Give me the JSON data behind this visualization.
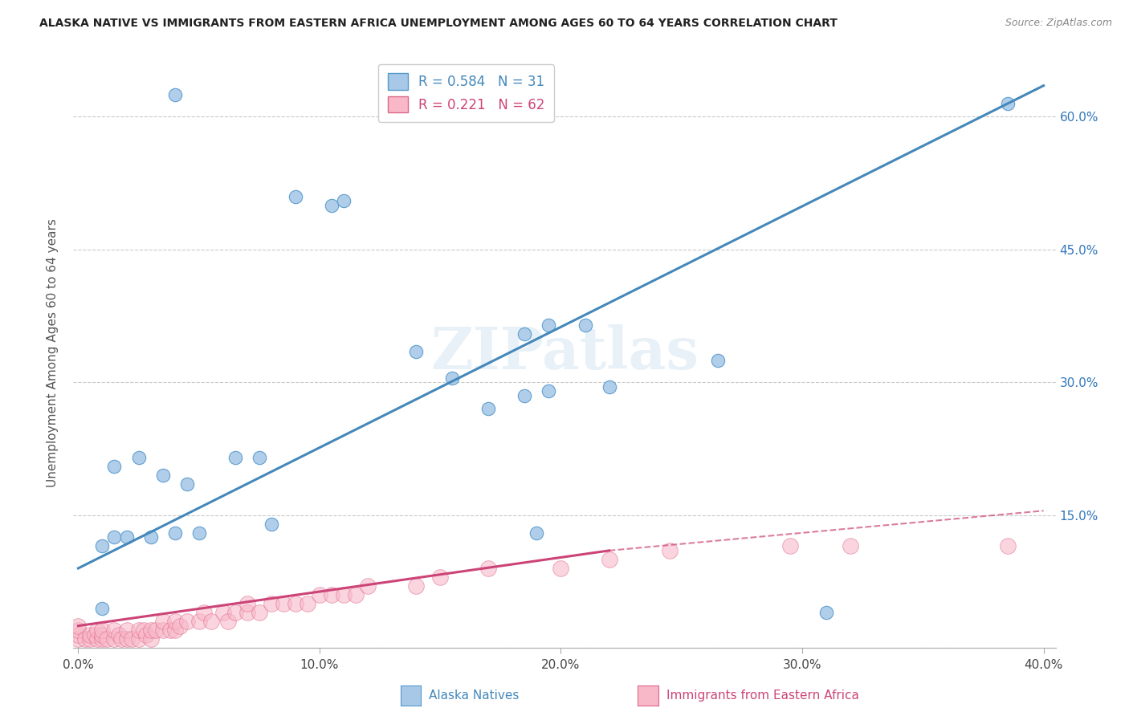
{
  "title": "ALASKA NATIVE VS IMMIGRANTS FROM EASTERN AFRICA UNEMPLOYMENT AMONG AGES 60 TO 64 YEARS CORRELATION CHART",
  "source": "Source: ZipAtlas.com",
  "ylabel": "Unemployment Among Ages 60 to 64 years",
  "xmin": 0.0,
  "xmax": 0.4,
  "ymin": 0.0,
  "ymax": 0.667,
  "legend1_label": "R = 0.584   N = 31",
  "legend2_label": "R = 0.221   N = 62",
  "legend_xlabel": "Alaska Natives",
  "legend_ylabel": "Immigrants from Eastern Africa",
  "blue_color": "#a8c8e8",
  "blue_edge_color": "#5599cc",
  "blue_line_color": "#4488bb",
  "pink_color": "#f8b8c8",
  "pink_edge_color": "#dd6688",
  "pink_line_color": "#cc4477",
  "background_color": "#ffffff",
  "grid_color": "#bbbbbb",
  "right_tick_color": "#3377bb",
  "blue_scatter_x": [
    0.04,
    0.09,
    0.105,
    0.11,
    0.195,
    0.21,
    0.185,
    0.195,
    0.14,
    0.155,
    0.22,
    0.185,
    0.17,
    0.265,
    0.015,
    0.025,
    0.035,
    0.045,
    0.01,
    0.015,
    0.02,
    0.03,
    0.04,
    0.05,
    0.065,
    0.075,
    0.08,
    0.01,
    0.19,
    0.31,
    0.385
  ],
  "blue_scatter_y": [
    0.625,
    0.51,
    0.5,
    0.505,
    0.365,
    0.365,
    0.355,
    0.29,
    0.335,
    0.305,
    0.295,
    0.285,
    0.27,
    0.325,
    0.205,
    0.215,
    0.195,
    0.185,
    0.115,
    0.125,
    0.125,
    0.125,
    0.13,
    0.13,
    0.215,
    0.215,
    0.14,
    0.045,
    0.13,
    0.04,
    0.615
  ],
  "pink_scatter_x": [
    0.0,
    0.0,
    0.0,
    0.0,
    0.003,
    0.005,
    0.005,
    0.007,
    0.008,
    0.008,
    0.01,
    0.01,
    0.01,
    0.012,
    0.015,
    0.015,
    0.017,
    0.018,
    0.02,
    0.02,
    0.022,
    0.025,
    0.025,
    0.027,
    0.028,
    0.03,
    0.03,
    0.032,
    0.035,
    0.035,
    0.038,
    0.04,
    0.04,
    0.042,
    0.045,
    0.05,
    0.052,
    0.055,
    0.06,
    0.062,
    0.065,
    0.07,
    0.07,
    0.075,
    0.08,
    0.085,
    0.09,
    0.095,
    0.1,
    0.105,
    0.11,
    0.115,
    0.12,
    0.14,
    0.15,
    0.17,
    0.2,
    0.22,
    0.245,
    0.295,
    0.32,
    0.385
  ],
  "pink_scatter_y": [
    0.01,
    0.015,
    0.02,
    0.025,
    0.01,
    0.01,
    0.015,
    0.015,
    0.01,
    0.02,
    0.01,
    0.015,
    0.02,
    0.01,
    0.01,
    0.02,
    0.015,
    0.01,
    0.01,
    0.02,
    0.01,
    0.01,
    0.02,
    0.02,
    0.015,
    0.01,
    0.02,
    0.02,
    0.02,
    0.03,
    0.02,
    0.02,
    0.03,
    0.025,
    0.03,
    0.03,
    0.04,
    0.03,
    0.04,
    0.03,
    0.04,
    0.04,
    0.05,
    0.04,
    0.05,
    0.05,
    0.05,
    0.05,
    0.06,
    0.06,
    0.06,
    0.06,
    0.07,
    0.07,
    0.08,
    0.09,
    0.09,
    0.1,
    0.11,
    0.115,
    0.115,
    0.115
  ],
  "blue_line_x": [
    0.0,
    0.4
  ],
  "blue_line_y": [
    0.09,
    0.635
  ],
  "pink_solid_line_x": [
    0.0,
    0.22
  ],
  "pink_solid_line_y": [
    0.025,
    0.11
  ],
  "pink_dashed_line_x": [
    0.22,
    0.4
  ],
  "pink_dashed_line_y": [
    0.11,
    0.155
  ],
  "ytick_positions": [
    0.0,
    0.15,
    0.3,
    0.45,
    0.6
  ],
  "ytick_labels_right": [
    "",
    "15.0%",
    "30.0%",
    "45.0%",
    "60.0%"
  ],
  "xtick_positions": [
    0.0,
    0.1,
    0.2,
    0.3,
    0.4
  ],
  "xtick_labels": [
    "0.0%",
    "10.0%",
    "20.0%",
    "30.0%",
    "40.0%"
  ]
}
